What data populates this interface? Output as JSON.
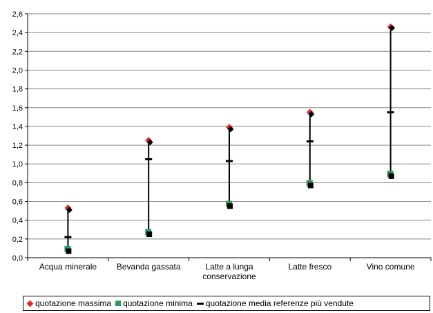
{
  "chart_data": {
    "type": "scatter",
    "categories": [
      "Acqua minerale",
      "Bevanda gassata",
      "Latte a lunga conservazione",
      "Latte fresco",
      "Vino comune"
    ],
    "category_lines": [
      [
        "Acqua minerale"
      ],
      [
        "Bevanda gassata"
      ],
      [
        "Latte a lunga",
        "conservazione"
      ],
      [
        "Latte fresco"
      ],
      [
        "Vino comune"
      ]
    ],
    "series": [
      {
        "name": "quotazione massima",
        "marker": "diamond",
        "color": "#e8262b",
        "values": [
          0.53,
          1.25,
          1.39,
          1.55,
          2.46
        ]
      },
      {
        "name": "quotazione minima",
        "marker": "square",
        "color": "#2e9b5a",
        "values": [
          0.09,
          0.27,
          0.57,
          0.79,
          0.89
        ]
      },
      {
        "name": "quotazione media referenze più vendute",
        "marker": "dash",
        "color": "#000000",
        "values": [
          0.22,
          1.05,
          1.03,
          1.24,
          1.55
        ]
      }
    ],
    "range_markers": {
      "high": [
        0.51,
        1.23,
        1.37,
        1.53,
        2.45
      ],
      "low": [
        0.07,
        0.25,
        0.55,
        0.77,
        0.87
      ]
    },
    "ylim": [
      0,
      2.6
    ],
    "ytick_step": 0.2,
    "ytick_labels": [
      "0,0",
      "0,2",
      "0,4",
      "0,6",
      "0,8",
      "1,0",
      "1,2",
      "1,4",
      "1,6",
      "1,8",
      "2,0",
      "2,2",
      "2,4",
      "2,6"
    ],
    "grid": true,
    "legend_position": "bottom"
  }
}
